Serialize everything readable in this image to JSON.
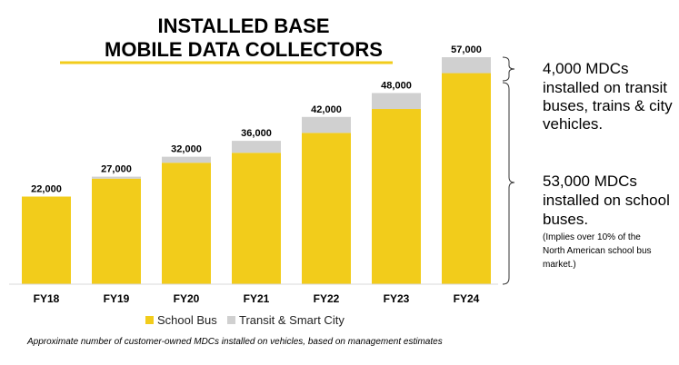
{
  "chart_data": {
    "type": "bar",
    "stacked": true,
    "title_lines": [
      "INSTALLED BASE",
      "MOBILE DATA COLLECTORS"
    ],
    "categories": [
      "FY18",
      "FY19",
      "FY20",
      "FY21",
      "FY22",
      "FY23",
      "FY24"
    ],
    "series": [
      {
        "name": "School Bus",
        "color": "#f2cc1b",
        "values": [
          22000,
          26500,
          30500,
          33000,
          38000,
          44000,
          53000
        ]
      },
      {
        "name": "Transit & Smart City",
        "color": "#d0d0d0",
        "values": [
          0,
          500,
          1500,
          3000,
          4000,
          4000,
          4000
        ]
      }
    ],
    "totals": [
      "22,000",
      "27,000",
      "32,000",
      "36,000",
      "42,000",
      "48,000",
      "57,000"
    ],
    "xlabel": "",
    "ylabel": "",
    "ylim": [
      0,
      60000
    ],
    "grid": false,
    "legend_position": "bottom-center",
    "title_underline_color": "#f2cc1b",
    "annotations": {
      "transit": [
        "4,000 MDCs",
        "installed on transit",
        "buses, trains & city",
        "vehicles."
      ],
      "school": [
        "53,000 MDCs",
        "installed on school",
        "buses."
      ],
      "school_note": [
        "(Implies over 10% of the",
        "North American school bus",
        "market.)"
      ]
    },
    "footnote": "Approximate number of  customer-owned MDCs installed on vehicles, based on management estimates"
  }
}
